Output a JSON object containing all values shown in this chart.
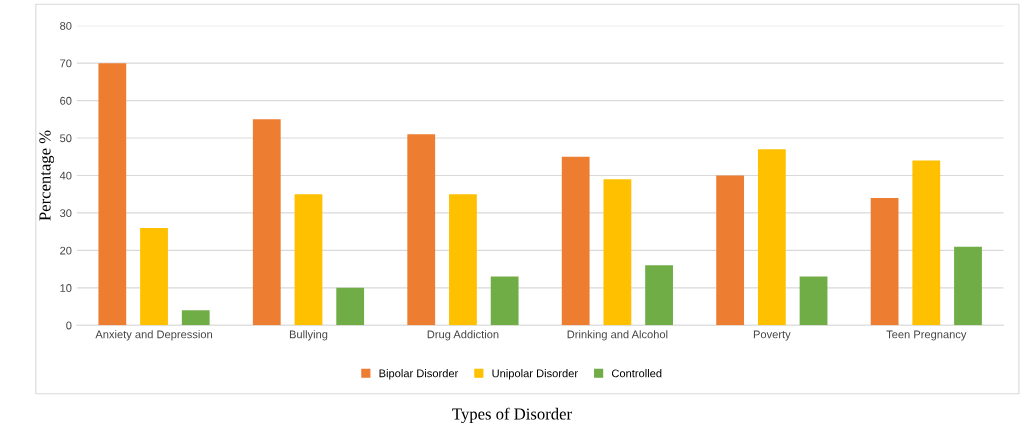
{
  "chart_data": {
    "type": "bar",
    "categories": [
      "Anxiety and Depression",
      "Bullying",
      "Drug Addiction",
      "Drinking and Alcohol",
      "Poverty",
      "Teen Pregnancy"
    ],
    "series": [
      {
        "name": "Bipolar Disorder",
        "color": "#ed7d31",
        "values": [
          70,
          55,
          51,
          45,
          40,
          34
        ]
      },
      {
        "name": "Unipolar Disorder",
        "color": "#ffc000",
        "values": [
          26,
          35,
          35,
          39,
          47,
          44
        ]
      },
      {
        "name": "Controlled",
        "color": "#70ad47",
        "values": [
          4,
          10,
          13,
          16,
          13,
          21
        ]
      }
    ],
    "xlabel": "Types of Disorder",
    "ylabel": "Percentage %",
    "ylim": [
      0,
      80
    ],
    "yticks": [
      0,
      10,
      20,
      30,
      40,
      50,
      60,
      70,
      80
    ],
    "grid": "y",
    "legend": "bottom"
  }
}
